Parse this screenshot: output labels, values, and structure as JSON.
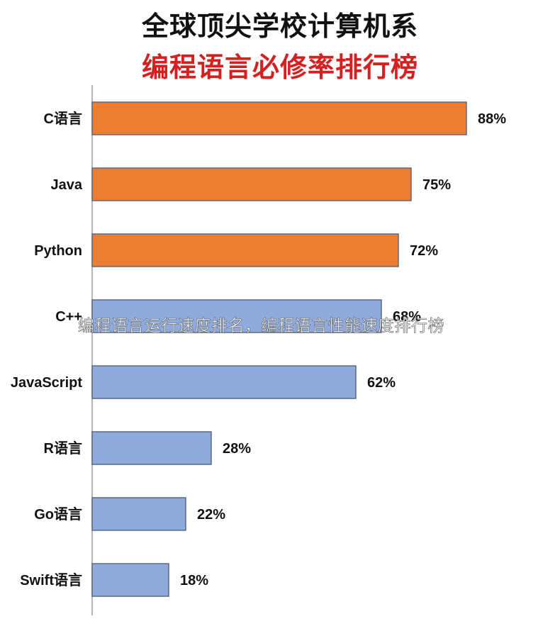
{
  "chart_data": {
    "type": "bar",
    "orientation": "horizontal",
    "title": "全球顶尖学校计算机系",
    "subtitle": "编程语言必修率排行榜",
    "categories": [
      "C语言",
      "Java",
      "Python",
      "C++",
      "JavaScript",
      "R语言",
      "Go语言",
      "Swift语言"
    ],
    "values": [
      88,
      75,
      72,
      68,
      62,
      28,
      22,
      18
    ],
    "value_labels": [
      "88%",
      "75%",
      "72%",
      "68%",
      "62%",
      "28%",
      "22%",
      "18%"
    ],
    "bar_colors": [
      "#ed7d31",
      "#ed7d31",
      "#ed7d31",
      "#8faadc",
      "#8faadc",
      "#8faadc",
      "#8faadc",
      "#8faadc"
    ],
    "xlabel": "",
    "ylabel": "",
    "xlim": [
      0,
      100
    ],
    "grid": false,
    "legend": "none"
  },
  "colors": {
    "title": "#111111",
    "subtitle": "#d61f1f",
    "orange_bar": "#ed7d31",
    "blue_bar": "#8faadc",
    "bar_border": "#5a6b80",
    "axis": "#9e9e9e"
  },
  "overlay": {
    "caption": "编程语言运行速度排名，编程语言性能速度排行榜"
  }
}
